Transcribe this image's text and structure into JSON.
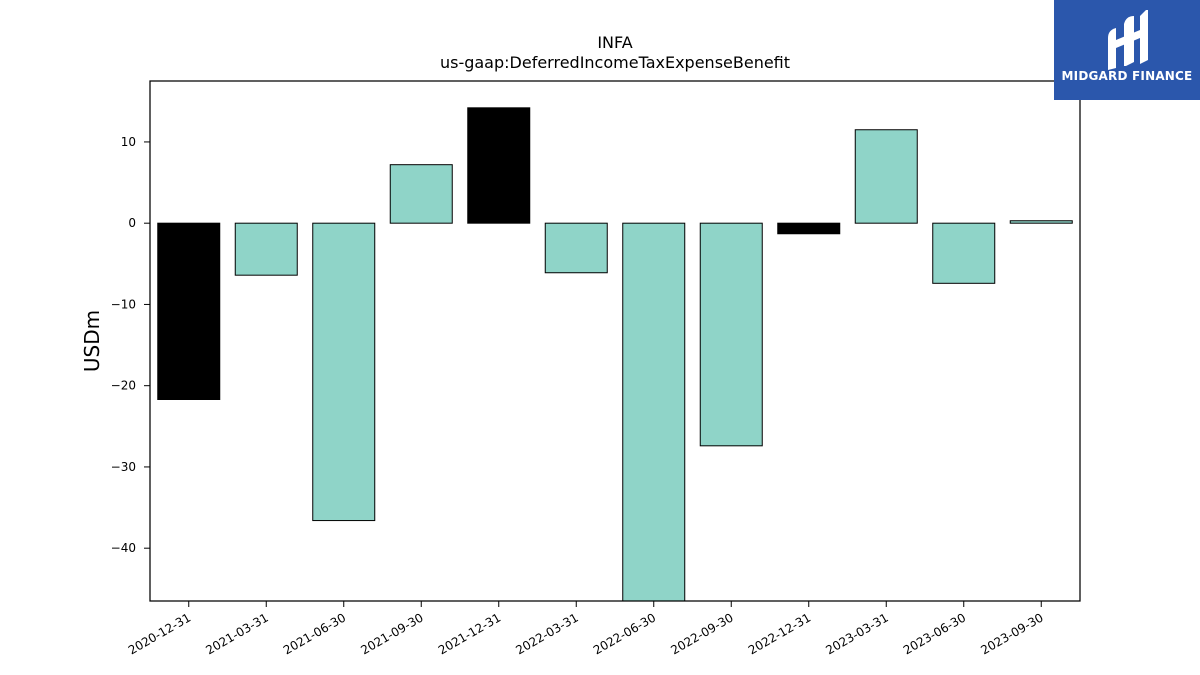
{
  "brand": {
    "name": "MIDGARD FINANCE",
    "color": "#2b57ac"
  },
  "chart_data": {
    "type": "bar",
    "title": "INFA",
    "subtitle": "us-gaap:DeferredIncomeTaxExpenseBenefit",
    "xlabel": "",
    "ylabel": "USDm",
    "ylim": [
      -46.5,
      17.5
    ],
    "yticks": [
      10,
      0,
      -10,
      -20,
      -30,
      -40
    ],
    "ytick_labels": [
      "10",
      "0",
      "−10",
      "−20",
      "−30",
      "−40"
    ],
    "grid": false,
    "categories": [
      "2020-12-31",
      "2021-03-31",
      "2021-06-30",
      "2021-09-30",
      "2021-12-31",
      "2022-03-31",
      "2022-06-30",
      "2022-09-30",
      "2022-12-31",
      "2023-03-31",
      "2023-06-30",
      "2023-09-30"
    ],
    "values": [
      -21.7,
      -6.4,
      -36.6,
      7.2,
      14.2,
      -6.1,
      -47.0,
      -27.4,
      -1.3,
      11.5,
      -7.4,
      0.3
    ],
    "bar_colors": [
      "#000000",
      "#8fd4c8",
      "#8fd4c8",
      "#8fd4c8",
      "#000000",
      "#8fd4c8",
      "#8fd4c8",
      "#8fd4c8",
      "#000000",
      "#8fd4c8",
      "#8fd4c8",
      "#8fd4c8"
    ]
  }
}
